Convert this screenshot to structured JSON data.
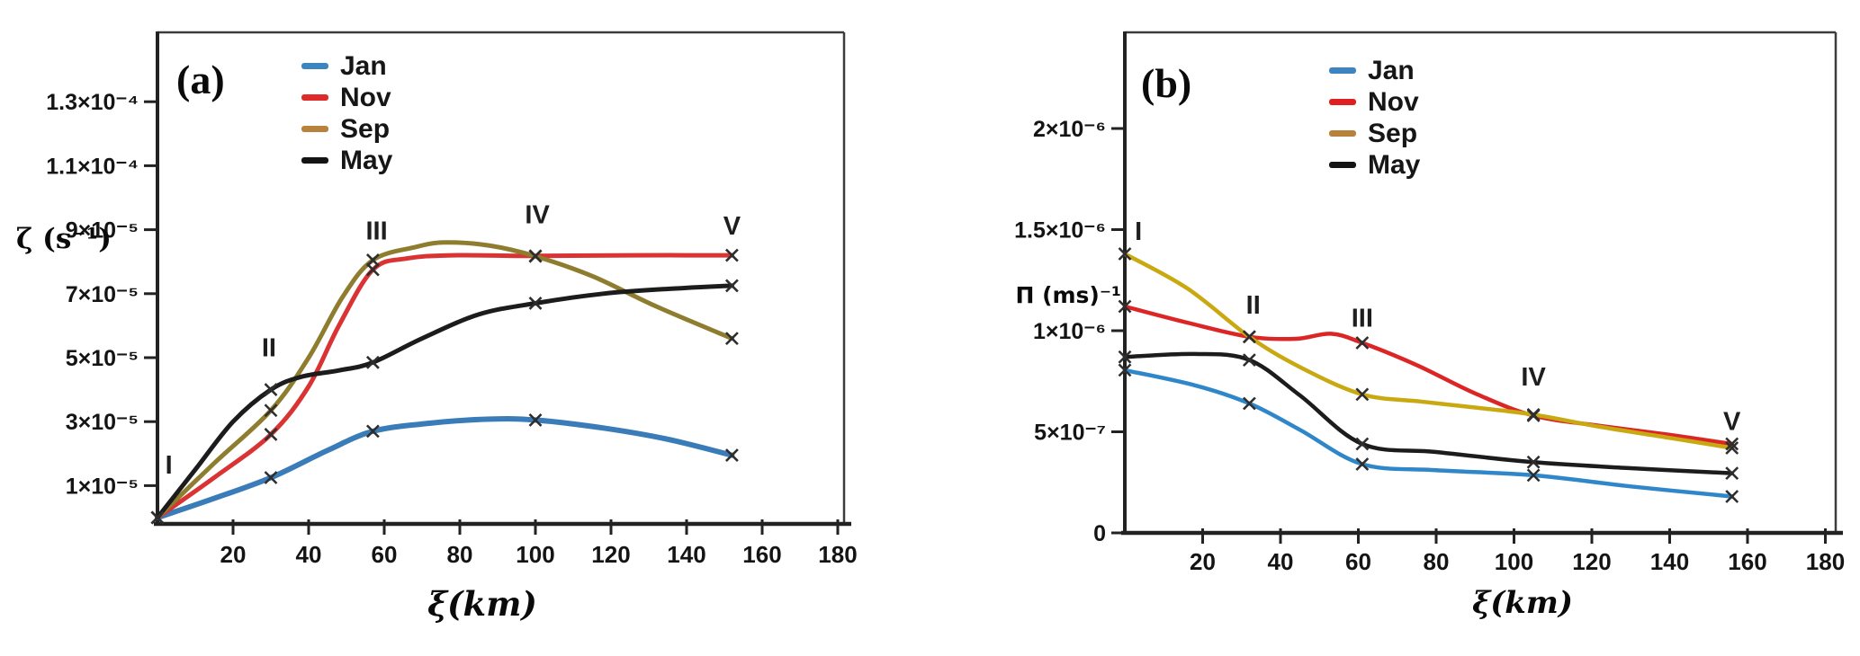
{
  "figure": {
    "background": "#ffffff",
    "marker_style": "x",
    "marker_color": "#2e2e2e"
  },
  "chart_data": [
    {
      "type": "line",
      "panel_label": "(a)",
      "xlabel": "ξ(km)",
      "ylabel": "ζ (s⁻¹)",
      "xlim": [
        0,
        185
      ],
      "ylim": [
        0,
        0.00014
      ],
      "grid": false,
      "legend_position": "top-left-inside",
      "x_ticks": [
        20,
        40,
        60,
        80,
        100,
        120,
        140,
        160,
        180
      ],
      "y_ticks": [
        {
          "label": "1.3×10⁻⁴",
          "value": 0.00013
        },
        {
          "label": "1.1×10⁻⁴",
          "value": 0.00011
        },
        {
          "label": "9×10⁻⁵",
          "value": 9e-05
        },
        {
          "label": "7×10⁻⁵",
          "value": 7e-05
        },
        {
          "label": "5×10⁻⁵",
          "value": 5e-05
        },
        {
          "label": "3×10⁻⁵",
          "value": 3e-05
        },
        {
          "label": "1×10⁻⁵",
          "value": 1e-05
        }
      ],
      "legend": [
        {
          "label": "Jan",
          "color": "#3d85c0"
        },
        {
          "label": "Nov",
          "color": "#e02a2a"
        },
        {
          "label": "Sep",
          "color": "#b8823c"
        },
        {
          "label": "May",
          "color": "#141414"
        }
      ],
      "marker_stations_km": [
        0,
        30,
        57,
        100,
        152
      ],
      "annotations": [
        {
          "label": "I",
          "km": 3,
          "value": 1.63e-05
        },
        {
          "label": "II",
          "km": 29.5,
          "value": 5.3e-05
        },
        {
          "label": "III",
          "km": 58,
          "value": 8.95e-05
        },
        {
          "label": "IV",
          "km": 100.5,
          "value": 9.45e-05
        },
        {
          "label": "V",
          "km": 152,
          "value": 9.1e-05
        }
      ],
      "series": [
        {
          "name": "Jan",
          "color": "#3a7cb8",
          "width": 6,
          "points": [
            [
              0,
              0
            ],
            [
              15,
              6e-06
            ],
            [
              30,
              1.25e-05
            ],
            [
              45,
              2.1e-05
            ],
            [
              57,
              2.7e-05
            ],
            [
              72,
              2.95e-05
            ],
            [
              88,
              3.08e-05
            ],
            [
              100,
              3.05e-05
            ],
            [
              118,
              2.8e-05
            ],
            [
              135,
              2.45e-05
            ],
            [
              152,
              1.95e-05
            ]
          ]
        },
        {
          "name": "Nov",
          "color": "#da3333",
          "width": 5,
          "points": [
            [
              0,
              0
            ],
            [
              15,
              1.25e-05
            ],
            [
              30,
              2.6e-05
            ],
            [
              40,
              4.1e-05
            ],
            [
              48,
              6e-05
            ],
            [
              57,
              7.75e-05
            ],
            [
              66,
              8.1e-05
            ],
            [
              78,
              8.2e-05
            ],
            [
              100,
              8.18e-05
            ],
            [
              125,
              8.2e-05
            ],
            [
              152,
              8.2e-05
            ]
          ]
        },
        {
          "name": "Sep",
          "color": "#8e7d2e",
          "width": 5,
          "points": [
            [
              0,
              0
            ],
            [
              15,
              1.7e-05
            ],
            [
              30,
              3.35e-05
            ],
            [
              40,
              5e-05
            ],
            [
              49,
              6.9e-05
            ],
            [
              57,
              8.05e-05
            ],
            [
              68,
              8.45e-05
            ],
            [
              76,
              8.6e-05
            ],
            [
              88,
              8.5e-05
            ],
            [
              100,
              8.17e-05
            ],
            [
              115,
              7.55e-05
            ],
            [
              132,
              6.6e-05
            ],
            [
              152,
              5.6e-05
            ]
          ]
        },
        {
          "name": "May",
          "color": "#1c1c1c",
          "width": 5,
          "points": [
            [
              0,
              0
            ],
            [
              10,
              1.5e-05
            ],
            [
              20,
              3e-05
            ],
            [
              30,
              4e-05
            ],
            [
              38,
              4.4e-05
            ],
            [
              48,
              4.6e-05
            ],
            [
              57,
              4.85e-05
            ],
            [
              70,
              5.6e-05
            ],
            [
              85,
              6.35e-05
            ],
            [
              100,
              6.7e-05
            ],
            [
              118,
              7e-05
            ],
            [
              135,
              7.15e-05
            ],
            [
              152,
              7.25e-05
            ]
          ]
        }
      ]
    },
    {
      "type": "line",
      "panel_label": "(b)",
      "xlabel": "ξ(km)",
      "ylabel": "Π (ms)⁻¹",
      "xlim": [
        0,
        185
      ],
      "ylim": [
        0,
        2.5e-06
      ],
      "grid": false,
      "legend_position": "top-left-inside",
      "x_ticks": [
        20,
        40,
        60,
        80,
        100,
        120,
        140,
        160,
        180
      ],
      "y_ticks": [
        {
          "label": "2×10⁻⁶",
          "value": 2e-06
        },
        {
          "label": "1.5×10⁻⁶",
          "value": 1.5e-06
        },
        {
          "label": "1×10⁻⁶",
          "value": 1e-06
        },
        {
          "label": "5×10⁻⁷",
          "value": 5e-07
        },
        {
          "label": "0",
          "value": 0
        }
      ],
      "legend": [
        {
          "label": "Jan",
          "color": "#3d85c0"
        },
        {
          "label": "Nov",
          "color": "#e02020"
        },
        {
          "label": "Sep",
          "color": "#b8823c"
        },
        {
          "label": "May",
          "color": "#141414"
        }
      ],
      "marker_stations_km": [
        0,
        32,
        61,
        105,
        156
      ],
      "annotations": [
        {
          "label": "I",
          "km": 3.5,
          "value": 1.49e-06
        },
        {
          "label": "II",
          "km": 33,
          "value": 1.125e-06
        },
        {
          "label": "III",
          "km": 61,
          "value": 1.06e-06
        },
        {
          "label": "IV",
          "km": 105,
          "value": 7.7e-07
        },
        {
          "label": "V",
          "km": 156,
          "value": 5.5e-07
        }
      ],
      "series": [
        {
          "name": "Jan",
          "color": "#2f86c8",
          "width": 4.5,
          "points": [
            [
              0,
              8.05e-07
            ],
            [
              18,
              7.3e-07
            ],
            [
              32,
              6.4e-07
            ],
            [
              45,
              5.1e-07
            ],
            [
              61,
              3.4e-07
            ],
            [
              80,
              3.1e-07
            ],
            [
              105,
              2.85e-07
            ],
            [
              130,
              2.3e-07
            ],
            [
              156,
              1.8e-07
            ]
          ]
        },
        {
          "name": "Nov",
          "color": "#dc2626",
          "width": 4.5,
          "points": [
            [
              0,
              1.12e-06
            ],
            [
              16,
              1.04e-06
            ],
            [
              32,
              9.7e-07
            ],
            [
              44,
              9.6e-07
            ],
            [
              53,
              9.85e-07
            ],
            [
              61,
              9.4e-07
            ],
            [
              75,
              8.3e-07
            ],
            [
              90,
              6.9e-07
            ],
            [
              105,
              5.8e-07
            ],
            [
              122,
              5.3e-07
            ],
            [
              140,
              4.85e-07
            ],
            [
              156,
              4.4e-07
            ]
          ]
        },
        {
          "name": "Sep",
          "color": "#c9a912",
          "width": 4.5,
          "points": [
            [
              0,
              1.38e-06
            ],
            [
              16,
              1.21e-06
            ],
            [
              32,
              9.7e-07
            ],
            [
              45,
              8.2e-07
            ],
            [
              61,
              6.85e-07
            ],
            [
              76,
              6.5e-07
            ],
            [
              90,
              6.2e-07
            ],
            [
              105,
              5.85e-07
            ],
            [
              122,
              5.25e-07
            ],
            [
              140,
              4.7e-07
            ],
            [
              156,
              4.2e-07
            ]
          ]
        },
        {
          "name": "May",
          "color": "#1c1c1c",
          "width": 4.5,
          "points": [
            [
              0,
              8.7e-07
            ],
            [
              18,
              8.85e-07
            ],
            [
              32,
              8.55e-07
            ],
            [
              45,
              6.8e-07
            ],
            [
              61,
              4.4e-07
            ],
            [
              80,
              4e-07
            ],
            [
              105,
              3.5e-07
            ],
            [
              130,
              3.2e-07
            ],
            [
              156,
              2.95e-07
            ]
          ]
        }
      ]
    }
  ]
}
